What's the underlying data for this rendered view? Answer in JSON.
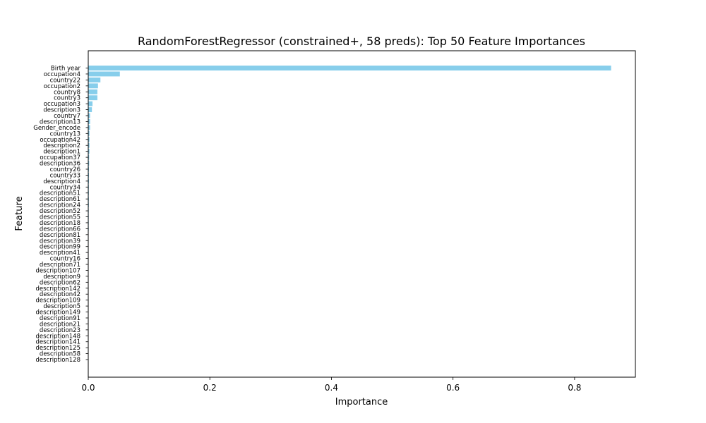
{
  "chart_data": {
    "type": "bar",
    "orientation": "horizontal",
    "title": "RandomForestRegressor (constrained+, 58 preds): Top 50 Feature Importances",
    "xlabel": "Importance",
    "ylabel": "Feature",
    "xlim": [
      0,
      0.9
    ],
    "xticks": [
      "0.0",
      "0.2",
      "0.4",
      "0.6",
      "0.8"
    ],
    "xtick_values": [
      0,
      0.2,
      0.4,
      0.6,
      0.8
    ],
    "bar_color": "#87ceeb",
    "grid": false,
    "categories": [
      "Birth year",
      "occupation4",
      "country22",
      "occupation2",
      "country8",
      "country3",
      "occupation3",
      "description3",
      "country7",
      "description13",
      "Gender_encode",
      "country13",
      "occupation42",
      "description2",
      "description1",
      "occupation37",
      "description36",
      "country26",
      "country33",
      "description4",
      "country34",
      "description51",
      "description61",
      "description24",
      "description52",
      "description55",
      "description18",
      "description66",
      "description81",
      "description39",
      "description99",
      "description41",
      "country16",
      "description71",
      "description107",
      "description9",
      "description62",
      "description142",
      "description42",
      "description109",
      "description5",
      "description149",
      "description91",
      "description21",
      "description23",
      "description148",
      "description141",
      "description125",
      "description58",
      "description128"
    ],
    "values": [
      0.86,
      0.052,
      0.02,
      0.016,
      0.015,
      0.015,
      0.007,
      0.006,
      0.003,
      0.003,
      0.003,
      0.002,
      0.002,
      0.002,
      0.002,
      0.0015,
      0.0015,
      0.0012,
      0.0012,
      0.0012,
      0.001,
      0.001,
      0.001,
      0.001,
      0.0008,
      0.0008,
      0.0008,
      0.0008,
      0.0006,
      0.0006,
      0.0006,
      0.0006,
      0.0006,
      0.0005,
      0.0005,
      0.0005,
      0.0005,
      0.0004,
      0.0004,
      0.0004,
      0.0004,
      0.0003,
      0.0003,
      0.0003,
      0.0003,
      0.0003,
      0.0002,
      0.0002,
      0.0002,
      0.0002
    ]
  }
}
